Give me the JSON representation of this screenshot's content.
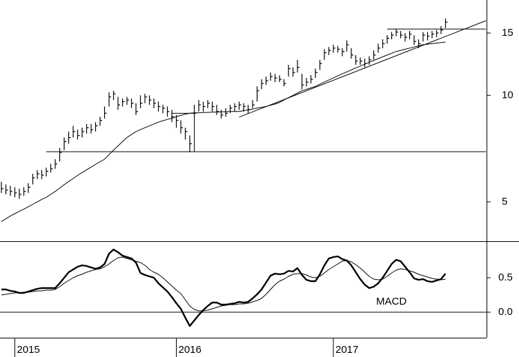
{
  "chart_data": {
    "type": "ohlc",
    "log_scale": true,
    "color": "#000000",
    "categories": [
      null,
      null,
      null,
      "2015",
      null,
      null,
      null,
      null,
      null,
      null,
      null,
      null,
      null,
      null,
      null,
      null,
      null,
      null,
      null,
      null,
      null,
      null,
      null,
      null,
      null,
      null,
      null,
      null,
      null,
      null,
      null,
      null,
      null,
      null,
      null,
      null,
      null,
      null,
      null,
      "2016",
      null,
      null,
      null,
      null,
      null,
      null,
      null,
      null,
      null,
      null,
      null,
      null,
      null,
      null,
      null,
      null,
      null,
      null,
      null,
      null,
      null,
      null,
      null,
      null,
      null,
      null,
      null,
      null,
      null,
      null,
      null,
      null,
      null,
      null,
      "2017",
      null,
      null,
      null,
      null,
      null,
      null,
      null,
      null,
      null,
      null,
      null,
      null,
      null,
      null,
      null,
      null,
      null,
      null,
      null,
      null,
      null,
      null,
      null,
      null,
      null
    ],
    "high": [
      5.7,
      5.6,
      5.55,
      5.5,
      5.45,
      5.5,
      5.65,
      6.0,
      6.15,
      6.15,
      6.25,
      6.4,
      6.6,
      7.1,
      7.6,
      7.9,
      8.2,
      8.0,
      8.1,
      8.3,
      8.3,
      8.4,
      8.7,
      9.3,
      10.2,
      10.3,
      9.9,
      9.8,
      9.9,
      9.8,
      9.5,
      10.0,
      10.1,
      10.0,
      9.8,
      9.6,
      9.4,
      9.3,
      9.1,
      8.8,
      8.5,
      8.1,
      7.7,
      9.4,
      9.7,
      9.6,
      9.7,
      9.6,
      9.4,
      9.1,
      9.2,
      9.4,
      9.5,
      9.6,
      9.5,
      9.4,
      9.7,
      10.6,
      11.1,
      11.3,
      11.6,
      11.5,
      11.4,
      11.1,
      12.2,
      12.0,
      12.6,
      11.5,
      11.2,
      11.4,
      11.9,
      12.6,
      13.5,
      13.7,
      13.9,
      13.8,
      13.6,
      14.3,
      13.6,
      13.0,
      12.8,
      12.7,
      12.9,
      13.4,
      14.0,
      14.4,
      14.8,
      15.1,
      15.4,
      15.2,
      15.0,
      15.2,
      14.8,
      14.4,
      15.1,
      15.1,
      15.2,
      15.3,
      15.7,
      16.5
    ],
    "low": [
      5.3,
      5.25,
      5.2,
      5.15,
      5.1,
      5.2,
      5.3,
      5.6,
      5.8,
      5.8,
      5.9,
      6.05,
      6.2,
      6.5,
      7.0,
      7.3,
      7.6,
      7.5,
      7.6,
      7.8,
      7.8,
      7.9,
      8.2,
      8.6,
      9.3,
      9.7,
      9.1,
      9.3,
      9.4,
      9.2,
      8.8,
      9.2,
      9.5,
      9.4,
      9.2,
      9.0,
      8.9,
      8.7,
      8.4,
      8.1,
      7.8,
      7.5,
      6.9,
      8.7,
      9.0,
      9.0,
      9.2,
      9.0,
      8.8,
      8.6,
      8.7,
      8.9,
      9.0,
      9.1,
      9.0,
      8.9,
      9.2,
      9.6,
      10.4,
      10.7,
      11.0,
      10.9,
      10.9,
      10.6,
      11.3,
      11.3,
      11.6,
      10.4,
      10.6,
      10.8,
      11.2,
      11.8,
      12.6,
      13.0,
      13.2,
      13.2,
      12.9,
      13.3,
      12.7,
      12.2,
      12.2,
      12.0,
      12.2,
      12.6,
      13.2,
      13.6,
      14.0,
      14.4,
      14.7,
      14.5,
      14.2,
      14.4,
      13.9,
      13.6,
      14.2,
      14.3,
      14.5,
      14.6,
      14.9,
      15.5
    ],
    "close": [
      5.45,
      5.4,
      5.35,
      5.3,
      5.25,
      5.35,
      5.5,
      5.85,
      6.0,
      5.95,
      6.1,
      6.2,
      6.4,
      6.9,
      7.4,
      7.6,
      7.9,
      7.7,
      7.9,
      8.1,
      8.0,
      8.2,
      8.5,
      8.9,
      9.9,
      10.1,
      9.4,
      9.6,
      9.7,
      9.5,
      9.0,
      9.5,
      9.9,
      9.7,
      9.5,
      9.3,
      9.2,
      9.0,
      8.7,
      8.5,
      8.1,
      7.9,
      7.3,
      8.9,
      9.4,
      9.3,
      9.5,
      9.3,
      9.0,
      8.8,
      8.9,
      9.2,
      9.3,
      9.4,
      9.3,
      9.1,
      9.4,
      10.3,
      10.8,
      11.0,
      11.3,
      11.2,
      11.1,
      10.8,
      11.9,
      11.6,
      12.0,
      10.7,
      10.9,
      11.1,
      11.6,
      12.3,
      13.2,
      13.4,
      13.6,
      13.5,
      13.3,
      13.9,
      13.0,
      12.5,
      12.5,
      12.3,
      12.6,
      13.0,
      13.6,
      14.0,
      14.5,
      14.8,
      15.1,
      14.8,
      14.6,
      14.9,
      14.2,
      14.0,
      14.8,
      14.7,
      14.9,
      15.0,
      15.3,
      16.1
    ],
    "moving_average": [
      4.4,
      4.48,
      4.56,
      4.63,
      4.7,
      4.77,
      4.84,
      4.92,
      5.0,
      5.08,
      5.15,
      5.25,
      5.35,
      5.47,
      5.59,
      5.71,
      5.82,
      5.94,
      6.05,
      6.16,
      6.27,
      6.38,
      6.49,
      6.6,
      6.8,
      7.0,
      7.2,
      7.4,
      7.6,
      7.75,
      7.9,
      8.0,
      8.1,
      8.2,
      8.3,
      8.4,
      8.48,
      8.55,
      8.62,
      8.7,
      8.78,
      8.85,
      8.9,
      8.92,
      8.93,
      8.94,
      8.95,
      8.96,
      8.97,
      8.98,
      8.99,
      9.0,
      9.0,
      9.0,
      9.05,
      9.1,
      9.15,
      9.2,
      9.25,
      9.3,
      9.38,
      9.45,
      9.55,
      9.7,
      9.85,
      10.0,
      10.15,
      10.3,
      10.4,
      10.5,
      10.6,
      10.75,
      10.9,
      11.05,
      11.2,
      11.35,
      11.5,
      11.65,
      11.8,
      11.95,
      12.1,
      12.25,
      12.4,
      12.55,
      12.7,
      12.85,
      13.0,
      13.15,
      13.3,
      13.4,
      13.5,
      13.6,
      13.7,
      13.8,
      13.9,
      13.95,
      14.0,
      14.05,
      14.1,
      14.15
    ],
    "ylim": [
      3.87,
      18.6
    ],
    "yticks": [
      5,
      10,
      15
    ],
    "lines": [
      {
        "x": [
          10,
          108
        ],
        "y": [
          6.93,
          6.93
        ]
      },
      {
        "x": [
          86,
          108
        ],
        "y": [
          15.4,
          15.4
        ]
      },
      {
        "x": [
          53,
          108
        ],
        "y": [
          8.68,
          16.26
        ]
      },
      {
        "x": [
          38,
          43
        ],
        "y": [
          8.9,
          8.9
        ]
      },
      {
        "x": [
          43,
          43
        ],
        "y": [
          6.93,
          8.9
        ]
      }
    ],
    "macd": {
      "type": "line",
      "label": "MACD",
      "values": [
        0.33,
        0.33,
        0.31,
        0.3,
        0.28,
        0.28,
        0.3,
        0.32,
        0.34,
        0.35,
        0.35,
        0.35,
        0.35,
        0.42,
        0.5,
        0.58,
        0.62,
        0.66,
        0.68,
        0.67,
        0.65,
        0.63,
        0.65,
        0.7,
        0.85,
        0.91,
        0.87,
        0.82,
        0.8,
        0.78,
        0.72,
        0.57,
        0.54,
        0.52,
        0.5,
        0.42,
        0.36,
        0.3,
        0.22,
        0.13,
        0.05,
        -0.08,
        -0.2,
        -0.12,
        -0.04,
        0.03,
        0.09,
        0.14,
        0.14,
        0.11,
        0.11,
        0.12,
        0.13,
        0.15,
        0.14,
        0.15,
        0.2,
        0.26,
        0.33,
        0.43,
        0.53,
        0.56,
        0.55,
        0.56,
        0.6,
        0.59,
        0.64,
        0.54,
        0.47,
        0.45,
        0.45,
        0.55,
        0.68,
        0.78,
        0.8,
        0.81,
        0.77,
        0.75,
        0.68,
        0.58,
        0.48,
        0.4,
        0.35,
        0.37,
        0.42,
        0.5,
        0.6,
        0.7,
        0.76,
        0.74,
        0.66,
        0.58,
        0.49,
        0.47,
        0.48,
        0.45,
        0.44,
        0.46,
        0.48,
        0.56
      ],
      "signal": [
        0.25,
        0.26,
        0.27,
        0.28,
        0.28,
        0.29,
        0.29,
        0.3,
        0.31,
        0.31,
        0.32,
        0.32,
        0.33,
        0.37,
        0.42,
        0.46,
        0.5,
        0.53,
        0.55,
        0.58,
        0.6,
        0.62,
        0.63,
        0.66,
        0.7,
        0.75,
        0.79,
        0.8,
        0.78,
        0.76,
        0.74,
        0.72,
        0.68,
        0.62,
        0.58,
        0.55,
        0.5,
        0.44,
        0.38,
        0.32,
        0.27,
        0.18,
        0.09,
        0.04,
        0.02,
        0.02,
        0.03,
        0.05,
        0.07,
        0.09,
        0.1,
        0.11,
        0.11,
        0.12,
        0.12,
        0.13,
        0.15,
        0.17,
        0.2,
        0.26,
        0.33,
        0.4,
        0.45,
        0.48,
        0.52,
        0.55,
        0.56,
        0.56,
        0.54,
        0.51,
        0.5,
        0.52,
        0.57,
        0.62,
        0.66,
        0.7,
        0.74,
        0.75,
        0.73,
        0.69,
        0.64,
        0.58,
        0.52,
        0.48,
        0.47,
        0.48,
        0.52,
        0.57,
        0.61,
        0.63,
        0.62,
        0.6,
        0.58,
        0.55,
        0.53,
        0.51,
        0.49,
        0.48,
        0.47,
        0.48
      ],
      "ylim": [
        -0.37,
        1.03
      ],
      "yticks": [
        {
          "value": 0,
          "label": "0.0"
        },
        {
          "value": 0.5,
          "label": "0.5"
        }
      ]
    }
  }
}
